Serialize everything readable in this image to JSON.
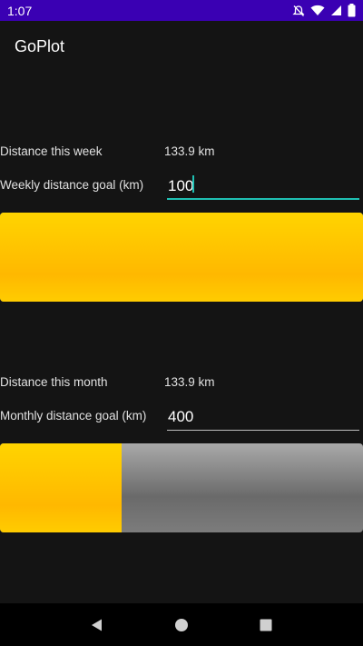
{
  "status_bar": {
    "time": "1:07"
  },
  "app": {
    "title": "GoPlot"
  },
  "weekly": {
    "distance_label": "Distance this week",
    "distance_value": "133.9 km",
    "goal_label": "Weekly distance goal (km)",
    "goal_value": "100",
    "progress_fraction": 1.0
  },
  "monthly": {
    "distance_label": "Distance this month",
    "distance_value": "133.9 km",
    "goal_label": "Monthly distance goal (km)",
    "goal_value": "400",
    "progress_fraction": 0.335
  },
  "colors": {
    "status_bar": "#3a00b3",
    "accent": "#1fc0b3",
    "progress_fill": "#ffcc00",
    "progress_track": "#7c7c7c"
  },
  "icons": {
    "status": [
      "mute-icon",
      "wifi-icon",
      "signal-icon",
      "battery-icon"
    ],
    "nav": [
      "back-icon",
      "home-icon",
      "recents-icon"
    ]
  }
}
